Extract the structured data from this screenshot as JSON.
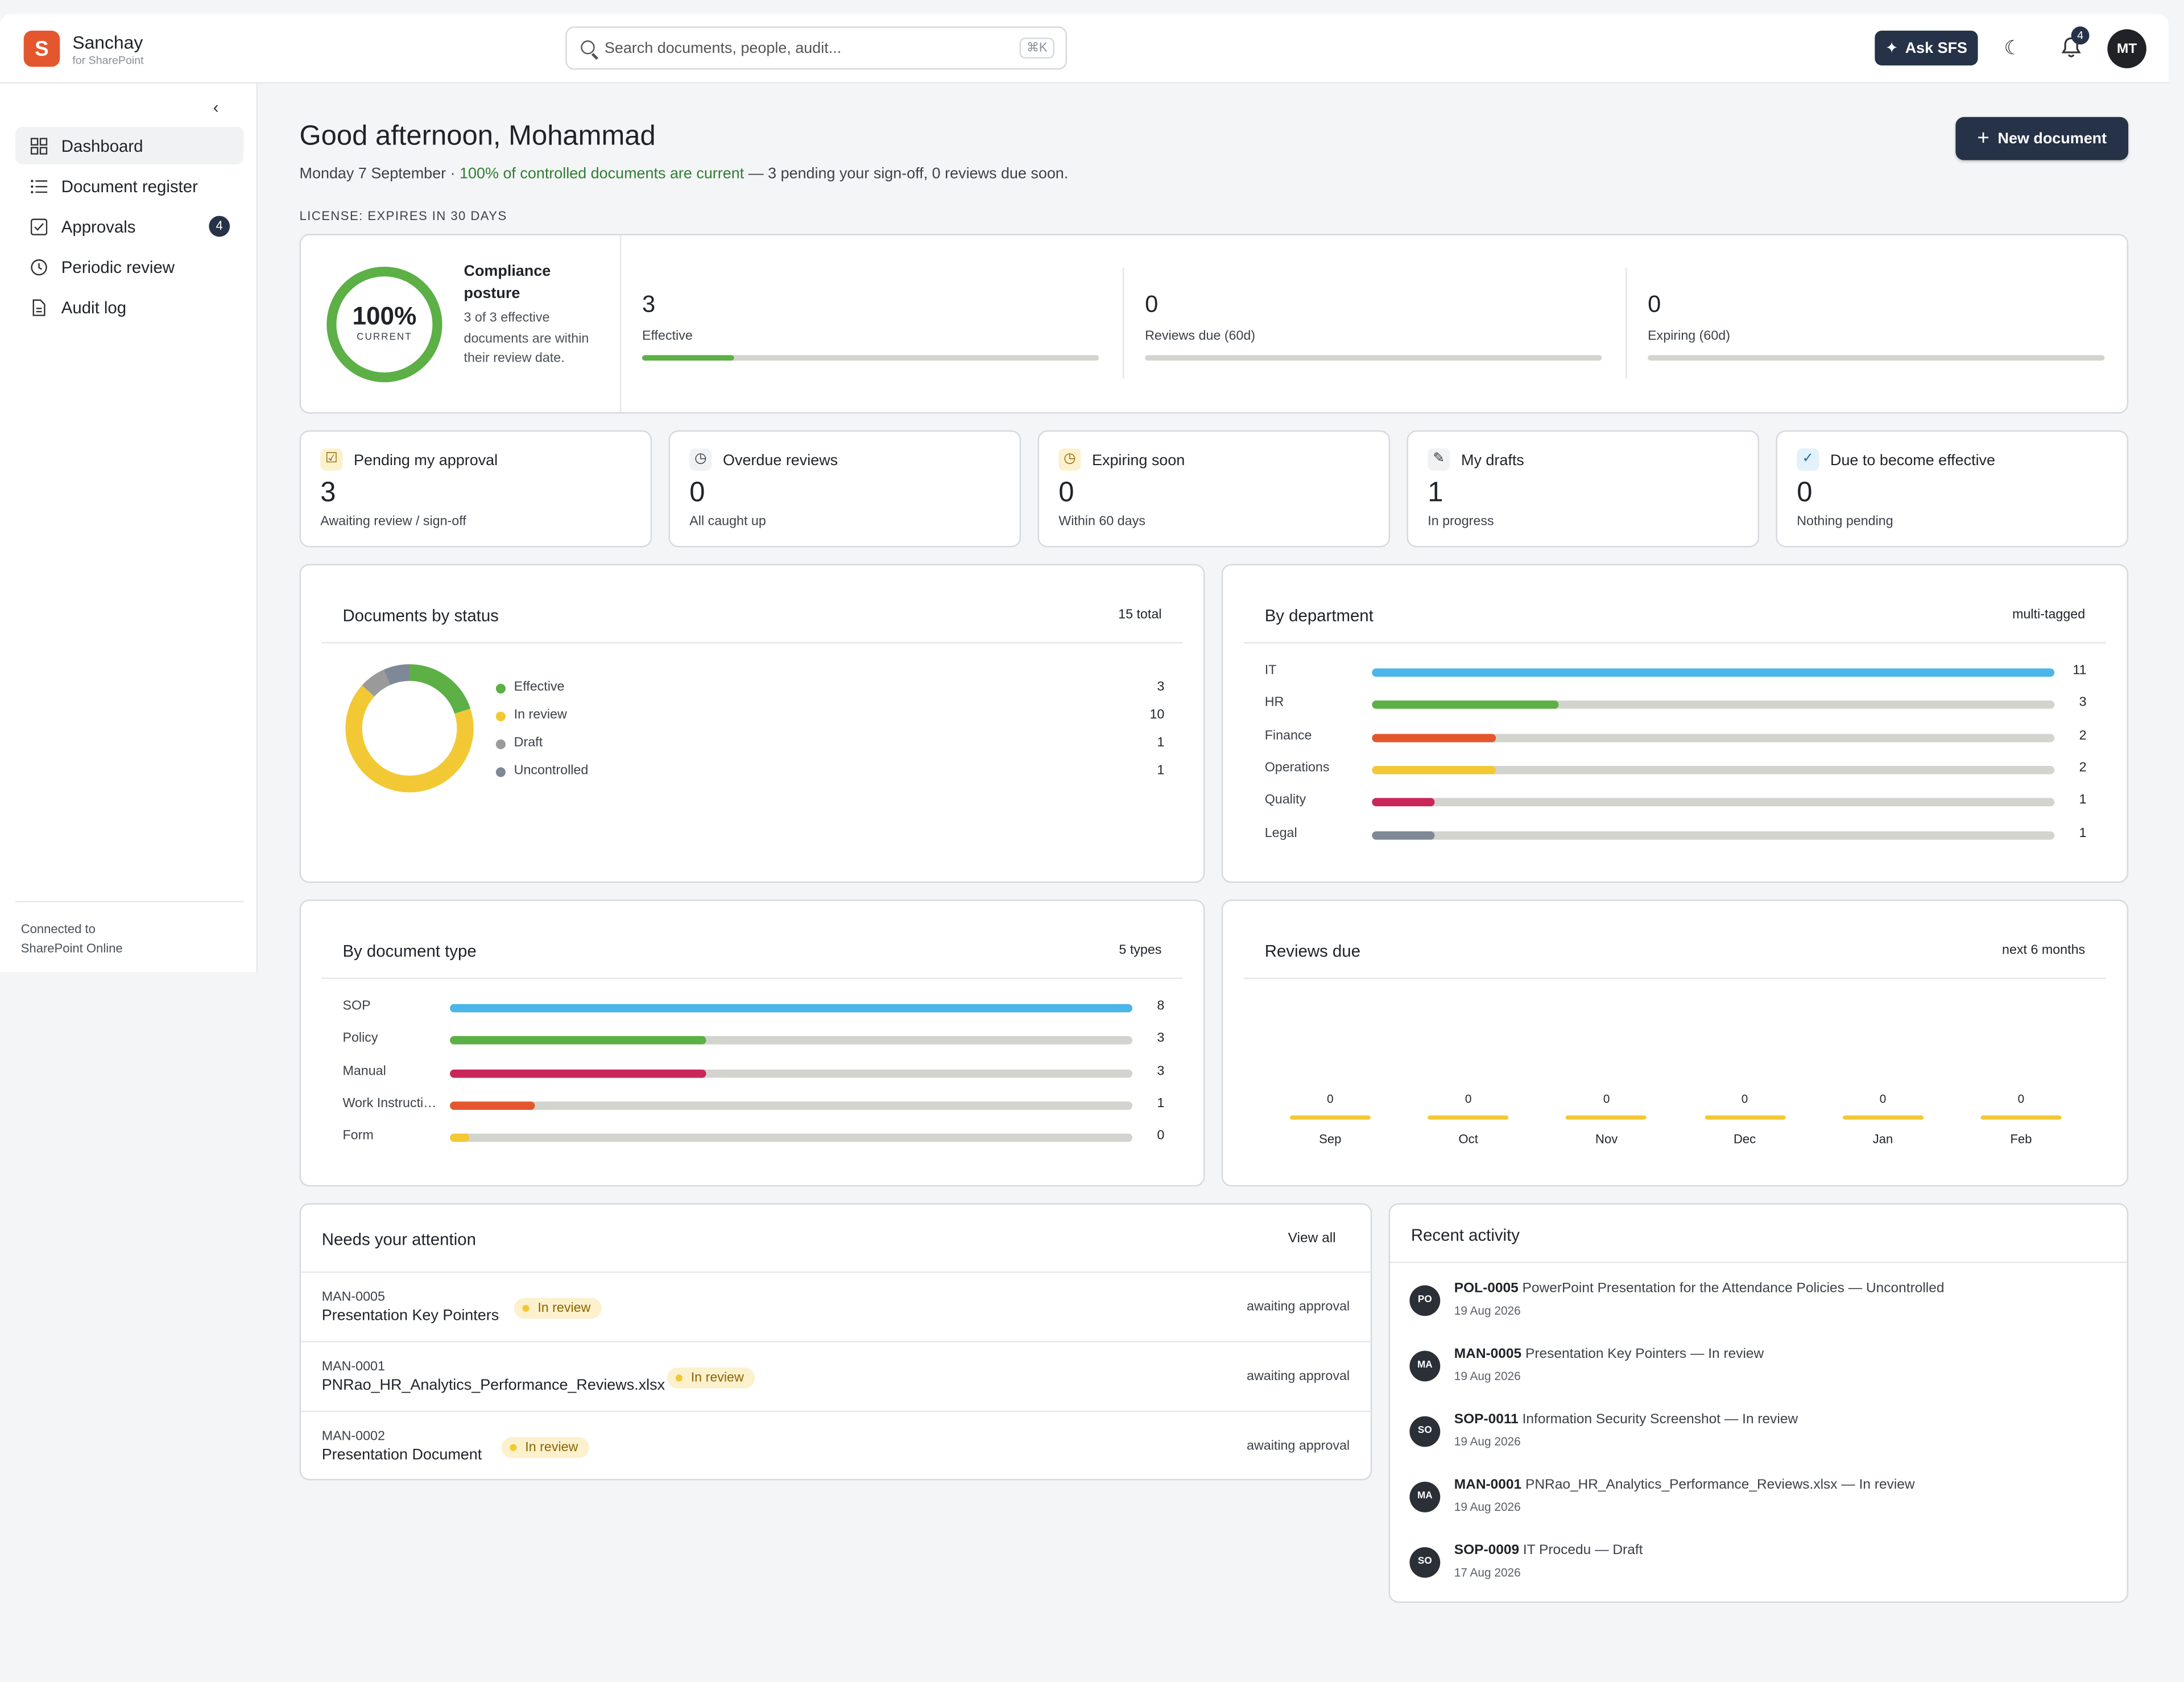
{
  "brand": {
    "name": "Sanchay",
    "sub": "for SharePoint",
    "logo_letter": "S",
    "accent": "#e4572e"
  },
  "search": {
    "placeholder": "Search documents, people, audit...",
    "shortcut": "⌘K"
  },
  "topbar": {
    "ask_label": "Ask SFS",
    "notifications_count": "4",
    "user_initials": "MT"
  },
  "sidebar": {
    "items": [
      {
        "label": "Dashboard",
        "icon": "grid-icon",
        "active": true
      },
      {
        "label": "Document register",
        "icon": "list-icon"
      },
      {
        "label": "Approvals",
        "icon": "check-square-icon",
        "badge": "4"
      },
      {
        "label": "Periodic review",
        "icon": "clock-icon"
      },
      {
        "label": "Audit log",
        "icon": "file-icon"
      }
    ],
    "footer_line1": "Connected to",
    "footer_line2": "SharePoint Online"
  },
  "header": {
    "greeting": "Good afternoon, Mohammad",
    "date": "Monday 7 September · ",
    "status_green": "100% of controlled documents are current",
    "status_rest": " — 3 pending your sign-off, 0 reviews due soon.",
    "new_doc_label": "New document",
    "license": "LICENSE: EXPIRES IN 30 DAYS"
  },
  "compliance": {
    "percent": "100%",
    "percent_label": "CURRENT",
    "ring_fraction": 1.0,
    "title": "Compliance posture",
    "description": "3 of 3 effective documents are within their review date.",
    "metrics": [
      {
        "value": "3",
        "label": "Effective",
        "fraction": 0.2
      },
      {
        "value": "0",
        "label": "Reviews due (60d)",
        "fraction": 0
      },
      {
        "value": "0",
        "label": "Expiring (60d)",
        "fraction": 0
      }
    ]
  },
  "stats": [
    {
      "title": "Pending my approval",
      "value": "3",
      "sub": "Awaiting review / sign-off",
      "icon": "edit-check-icon"
    },
    {
      "title": "Overdue reviews",
      "value": "0",
      "sub": "All caught up",
      "icon": "clock-icon"
    },
    {
      "title": "Expiring soon",
      "value": "0",
      "sub": "Within 60 days",
      "icon": "clock-icon"
    },
    {
      "title": "My drafts",
      "value": "1",
      "sub": "In progress",
      "icon": "edit-icon"
    },
    {
      "title": "Due to become effective",
      "value": "0",
      "sub": "Nothing pending",
      "icon": "check-icon"
    }
  ],
  "status_panel": {
    "title": "Documents by status",
    "total": "15 total"
  },
  "department_panel": {
    "title": "By department",
    "note": "multi-tagged"
  },
  "doctype_panel": {
    "title": "By document type",
    "note": "5 types"
  },
  "reviews_panel": {
    "title": "Reviews due",
    "note": "next 6 months"
  },
  "chart_data": [
    {
      "type": "pie",
      "title": "Documents by status",
      "categories": [
        "Effective",
        "In review",
        "Draft",
        "Uncontrolled"
      ],
      "values": [
        3,
        10,
        1,
        1
      ],
      "colors": [
        "#5cb046",
        "#f2c935",
        "#9a9a9a",
        "#7f8896"
      ]
    },
    {
      "type": "bar",
      "orientation": "horizontal",
      "title": "By department",
      "categories": [
        "IT",
        "HR",
        "Finance",
        "Operations",
        "Quality",
        "Legal"
      ],
      "values": [
        11,
        3,
        2,
        2,
        1,
        1
      ],
      "max": 11,
      "colors": [
        "#4ab6ea",
        "#5cb046",
        "#e4572e",
        "#f2c935",
        "#c9265a",
        "#7f8896"
      ]
    },
    {
      "type": "bar",
      "orientation": "horizontal",
      "title": "By document type",
      "categories": [
        "SOP",
        "Policy",
        "Manual",
        "Work Instructi…",
        "Form"
      ],
      "values": [
        8,
        3,
        3,
        1,
        0
      ],
      "max": 8,
      "colors": [
        "#4ab6ea",
        "#5cb046",
        "#c9265a",
        "#e4572e",
        "#f2c935"
      ]
    },
    {
      "type": "bar",
      "title": "Reviews due",
      "categories": [
        "Sep",
        "Oct",
        "Nov",
        "Dec",
        "Jan",
        "Feb"
      ],
      "values": [
        0,
        0,
        0,
        0,
        0,
        0
      ]
    }
  ],
  "attention": {
    "title": "Needs your attention",
    "view_all": "View all",
    "rows": [
      {
        "id": "MAN-0005",
        "name": "Presentation Key Pointers",
        "status": "In review",
        "state": "awaiting approval"
      },
      {
        "id": "MAN-0001",
        "name": "PNRao_HR_Analytics_Performance_Reviews.xlsx",
        "status": "In review",
        "state": "awaiting approval"
      },
      {
        "id": "MAN-0002",
        "name": "Presentation Document",
        "status": "In review",
        "state": "awaiting approval"
      }
    ]
  },
  "activity": {
    "title": "Recent activity",
    "items": [
      {
        "initials": "PO",
        "id": "POL-0005",
        "text": " PowerPoint Presentation for the Attendance Policies — Uncontrolled",
        "date": "19 Aug 2026"
      },
      {
        "initials": "MA",
        "id": "MAN-0005",
        "text": " Presentation Key Pointers — In review",
        "date": "19 Aug 2026"
      },
      {
        "initials": "SO",
        "id": "SOP-0011",
        "text": " Information Security Screenshot — In review",
        "date": "19 Aug 2026"
      },
      {
        "initials": "MA",
        "id": "MAN-0001",
        "text": " PNRao_HR_Analytics_Performance_Reviews.xlsx — In review",
        "date": "19 Aug 2026"
      },
      {
        "initials": "SO",
        "id": "SOP-0009",
        "text": " IT Procedu — Draft",
        "date": "17 Aug 2026"
      }
    ]
  }
}
